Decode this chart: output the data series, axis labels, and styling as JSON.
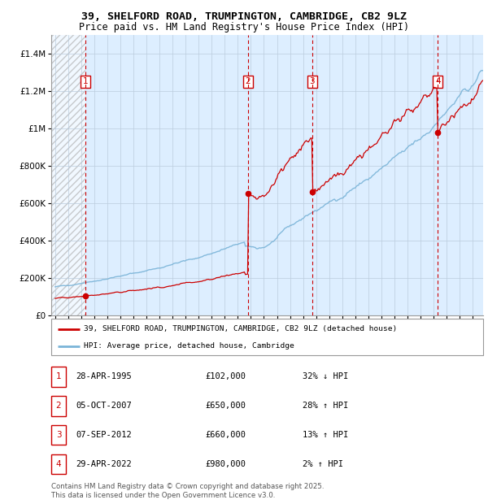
{
  "title_line1": "39, SHELFORD ROAD, TRUMPINGTON, CAMBRIDGE, CB2 9LZ",
  "title_line2": "Price paid vs. HM Land Registry's House Price Index (HPI)",
  "ylabel_ticks": [
    "£0",
    "£200K",
    "£400K",
    "£600K",
    "£800K",
    "£1M",
    "£1.2M",
    "£1.4M"
  ],
  "ytick_values": [
    0,
    200000,
    400000,
    600000,
    800000,
    1000000,
    1200000,
    1400000
  ],
  "ymax": 1500000,
  "xmin": 1992.7,
  "xmax": 2025.8,
  "hpi_color": "#7ab4d8",
  "price_color": "#cc0000",
  "bg_color": "#ddeeff",
  "grid_color": "#bbccdd",
  "vline_color": "#cc0000",
  "transactions": [
    {
      "num": 1,
      "year": 1995.33,
      "price": 102000
    },
    {
      "num": 2,
      "year": 2007.77,
      "price": 650000
    },
    {
      "num": 3,
      "year": 2012.69,
      "price": 660000
    },
    {
      "num": 4,
      "year": 2022.33,
      "price": 980000
    }
  ],
  "legend_price_label": "39, SHELFORD ROAD, TRUMPINGTON, CAMBRIDGE, CB2 9LZ (detached house)",
  "legend_hpi_label": "HPI: Average price, detached house, Cambridge",
  "footer_line1": "Contains HM Land Registry data © Crown copyright and database right 2025.",
  "footer_line2": "This data is licensed under the Open Government Licence v3.0.",
  "table_rows": [
    {
      "num": 1,
      "date": "28-APR-1995",
      "price": "£102,000",
      "pct": "32% ↓ HPI"
    },
    {
      "num": 2,
      "date": "05-OCT-2007",
      "price": "£650,000",
      "pct": "28% ↑ HPI"
    },
    {
      "num": 3,
      "date": "07-SEP-2012",
      "price": "£660,000",
      "pct": "13% ↑ HPI"
    },
    {
      "num": 4,
      "date": "29-APR-2022",
      "price": "£980,000",
      "pct": "2% ↑ HPI"
    }
  ]
}
